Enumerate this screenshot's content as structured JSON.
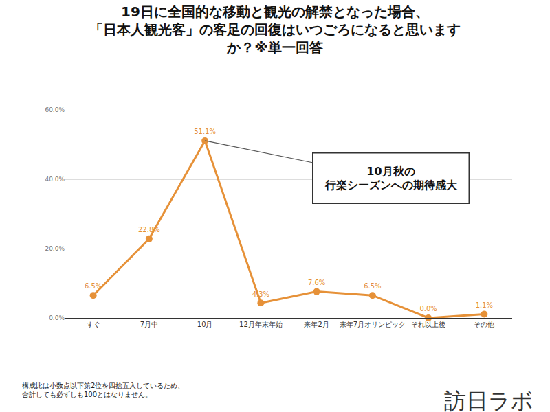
{
  "chart_data": {
    "type": "line",
    "title": [
      "19日に全国的な移動と観光の解禁となった場合、",
      "「日本人観光客」の客足の回復はいつごろになると思います",
      "か？※単一回答"
    ],
    "categories": [
      "すぐ",
      "7月中",
      "10月",
      "12月年末年始",
      "来年2月",
      "来年7月オリンピック",
      "それ以上後",
      "その他"
    ],
    "values": [
      6.5,
      22.8,
      51.1,
      4.3,
      7.6,
      6.5,
      0.0,
      1.1
    ],
    "value_labels": [
      "6.5%",
      "22.8%",
      "51.1%",
      "4.3%",
      "7.6%",
      "6.5%",
      "0.0%",
      "1.1%"
    ],
    "data_labels": true,
    "color": "#e69138",
    "marker": "circle",
    "ylim": [
      0,
      60
    ],
    "yticks": [
      {
        "value": 0,
        "label": "0.0%"
      },
      {
        "value": 20,
        "label": "20.0%"
      },
      {
        "value": 40,
        "label": "40.0%"
      },
      {
        "value": 60,
        "label": "60.0%"
      }
    ],
    "grid": true,
    "annotation": {
      "category": "10月",
      "text": [
        "10月秋の",
        "行楽シーズンへの期待感大"
      ]
    },
    "note": [
      "構成比は小数点以下第2位を四捨五入しているため、",
      "合計しても必ずしも100とはなりません。"
    ],
    "source": "訪日ラボ"
  }
}
